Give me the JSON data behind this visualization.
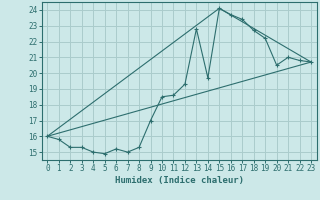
{
  "xlabel": "Humidex (Indice chaleur)",
  "bg_color": "#cce8e8",
  "grid_color": "#aacccc",
  "line_color": "#2d6e6e",
  "xlim": [
    -0.5,
    23.5
  ],
  "ylim": [
    14.5,
    24.5
  ],
  "xticks": [
    0,
    1,
    2,
    3,
    4,
    5,
    6,
    7,
    8,
    9,
    10,
    11,
    12,
    13,
    14,
    15,
    16,
    17,
    18,
    19,
    20,
    21,
    22,
    23
  ],
  "yticks": [
    15,
    16,
    17,
    18,
    19,
    20,
    21,
    22,
    23,
    24
  ],
  "line1_x": [
    0,
    1,
    2,
    3,
    4,
    5,
    6,
    7,
    8,
    9,
    10,
    11,
    12,
    13,
    14,
    15,
    16,
    17,
    18,
    19,
    20,
    21,
    22,
    23
  ],
  "line1_y": [
    16.0,
    15.8,
    15.3,
    15.3,
    15.0,
    14.9,
    15.2,
    15.0,
    15.3,
    17.0,
    18.5,
    18.6,
    19.3,
    22.8,
    19.7,
    24.1,
    23.7,
    23.4,
    22.7,
    22.2,
    20.5,
    21.0,
    20.8,
    20.7
  ],
  "line2_x": [
    0,
    23
  ],
  "line2_y": [
    16.0,
    20.7
  ],
  "line3_x": [
    0,
    15,
    23
  ],
  "line3_y": [
    16.0,
    24.1,
    20.7
  ]
}
